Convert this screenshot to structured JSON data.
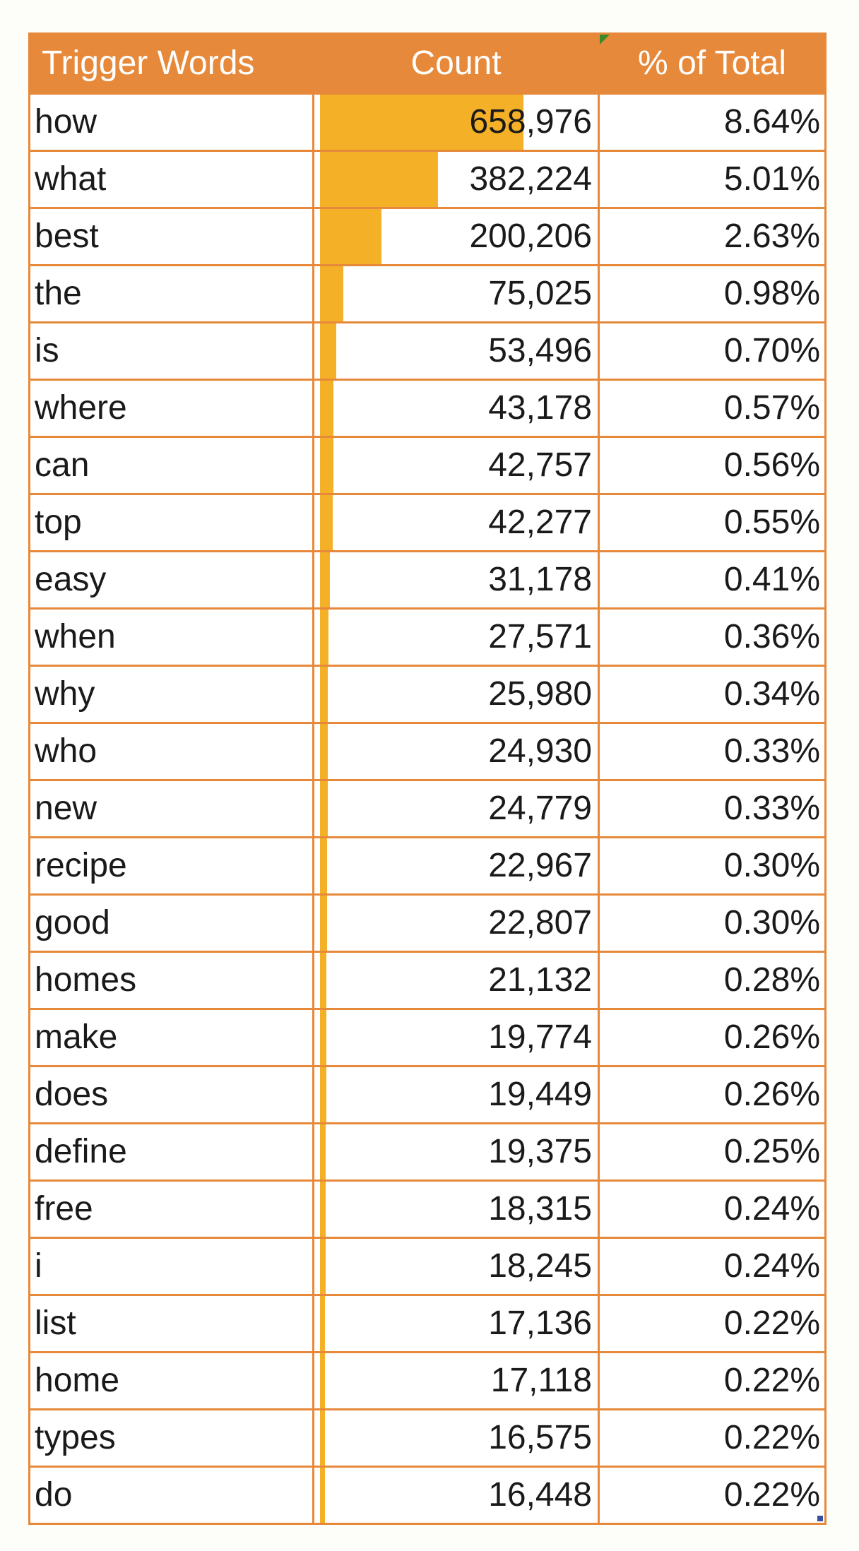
{
  "chart_data": {
    "type": "table",
    "columns": [
      "Trigger Words",
      "Count",
      "% of Total"
    ],
    "rows": [
      {
        "word": "how",
        "count": 658976,
        "count_label": "658,976",
        "pct": "8.64%"
      },
      {
        "word": "what",
        "count": 382224,
        "count_label": "382,224",
        "pct": "5.01%"
      },
      {
        "word": "best",
        "count": 200206,
        "count_label": "200,206",
        "pct": "2.63%"
      },
      {
        "word": "the",
        "count": 75025,
        "count_label": "75,025",
        "pct": "0.98%"
      },
      {
        "word": "is",
        "count": 53496,
        "count_label": "53,496",
        "pct": "0.70%"
      },
      {
        "word": "where",
        "count": 43178,
        "count_label": "43,178",
        "pct": "0.57%"
      },
      {
        "word": "can",
        "count": 42757,
        "count_label": "42,757",
        "pct": "0.56%"
      },
      {
        "word": "top",
        "count": 42277,
        "count_label": "42,277",
        "pct": "0.55%"
      },
      {
        "word": "easy",
        "count": 31178,
        "count_label": "31,178",
        "pct": "0.41%"
      },
      {
        "word": "when",
        "count": 27571,
        "count_label": "27,571",
        "pct": "0.36%"
      },
      {
        "word": "why",
        "count": 25980,
        "count_label": "25,980",
        "pct": "0.34%"
      },
      {
        "word": "who",
        "count": 24930,
        "count_label": "24,930",
        "pct": "0.33%"
      },
      {
        "word": "new",
        "count": 24779,
        "count_label": "24,779",
        "pct": "0.33%"
      },
      {
        "word": "recipe",
        "count": 22967,
        "count_label": "22,967",
        "pct": "0.30%"
      },
      {
        "word": "good",
        "count": 22807,
        "count_label": "22,807",
        "pct": "0.30%"
      },
      {
        "word": "homes",
        "count": 21132,
        "count_label": "21,132",
        "pct": "0.28%"
      },
      {
        "word": "make",
        "count": 19774,
        "count_label": "19,774",
        "pct": "0.26%"
      },
      {
        "word": "does",
        "count": 19449,
        "count_label": "19,449",
        "pct": "0.26%"
      },
      {
        "word": "define",
        "count": 19375,
        "count_label": "19,375",
        "pct": "0.25%"
      },
      {
        "word": "free",
        "count": 18315,
        "count_label": "18,315",
        "pct": "0.24%"
      },
      {
        "word": "i",
        "count": 18245,
        "count_label": "18,245",
        "pct": "0.24%"
      },
      {
        "word": "list",
        "count": 17136,
        "count_label": "17,136",
        "pct": "0.22%"
      },
      {
        "word": "home",
        "count": 17118,
        "count_label": "17,118",
        "pct": "0.22%"
      },
      {
        "word": "types",
        "count": 16575,
        "count_label": "16,575",
        "pct": "0.22%"
      },
      {
        "word": "do",
        "count": 16448,
        "count_label": "16,448",
        "pct": "0.22%"
      }
    ],
    "databar_max": 658976
  },
  "colors": {
    "header_bg": "#e7893a",
    "header_text": "#ffffff",
    "databar": "#f4b026",
    "grid": "#e7893a"
  }
}
